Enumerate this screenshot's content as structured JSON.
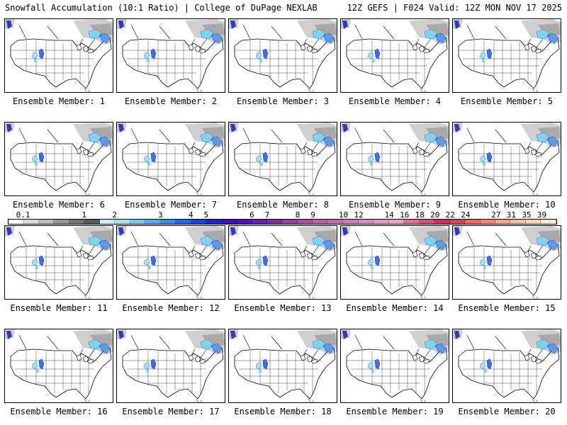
{
  "header": {
    "left": "Snowfall Accumulation (10:1 Ratio) | College of DuPage NEXLAB",
    "right": "12Z GEFS | F024 Valid: 12Z MON NOV 17 2025"
  },
  "panels": [
    {
      "label": "Ensemble Member: 1"
    },
    {
      "label": "Ensemble Member: 2"
    },
    {
      "label": "Ensemble Member: 3"
    },
    {
      "label": "Ensemble Member: 4"
    },
    {
      "label": "Ensemble Member: 5"
    },
    {
      "label": "Ensemble Member: 6"
    },
    {
      "label": "Ensemble Member: 7"
    },
    {
      "label": "Ensemble Member: 8"
    },
    {
      "label": "Ensemble Member: 9"
    },
    {
      "label": "Ensemble Member: 10"
    },
    {
      "label": "Ensemble Member: 11"
    },
    {
      "label": "Ensemble Member: 12"
    },
    {
      "label": "Ensemble Member: 13"
    },
    {
      "label": "Ensemble Member: 14"
    },
    {
      "label": "Ensemble Member: 15"
    },
    {
      "label": "Ensemble Member: 16"
    },
    {
      "label": "Ensemble Member: 17"
    },
    {
      "label": "Ensemble Member: 18"
    },
    {
      "label": "Ensemble Member: 19"
    },
    {
      "label": "Ensemble Member: 20"
    }
  ],
  "legend": {
    "labels": [
      "0.1",
      "1",
      "2",
      "3",
      "4",
      "5",
      "6",
      "7",
      "8",
      "9",
      "10",
      "12",
      "14",
      "16",
      "18",
      "20",
      "22",
      "24",
      "27",
      "31",
      "35",
      "39"
    ],
    "colors": [
      "#ffffff",
      "#d9d9d9",
      "#bdbdbd",
      "#969696",
      "#737373",
      "#5a5a5a",
      "#c9f2f8",
      "#a3e1f2",
      "#7dc6ee",
      "#59a8ea",
      "#3c8be8",
      "#2166e2",
      "#1a44d6",
      "#1e22c8",
      "#3c12b4",
      "#5a10a8",
      "#6e1f9e",
      "#822e9a",
      "#94409e",
      "#a6509f",
      "#b45fa6",
      "#c06eb0",
      "#cc7dba",
      "#d68cc0",
      "#de98c4",
      "#e6a4c4",
      "#dc6e9c",
      "#d24e80",
      "#c43466",
      "#d44a52",
      "#e0705e",
      "#e88e72",
      "#eeaa88",
      "#f2c09c",
      "#f6d4b4",
      "#fae8d2"
    ]
  }
}
